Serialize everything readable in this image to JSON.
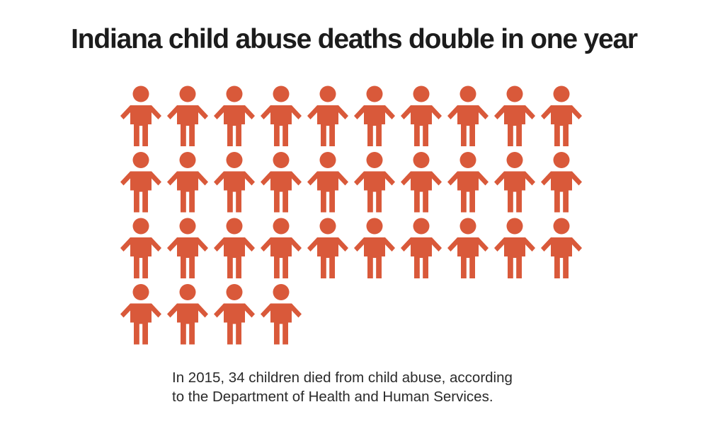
{
  "title": "Indiana child abuse deaths double in one year",
  "caption": {
    "line1": "In 2015, 34 children died from child abuse, according",
    "line2": "to the Department of Health and Human Services."
  },
  "colors": {
    "icon": "#d9593a",
    "title": "#1c1c1c",
    "caption": "#2a2a2a",
    "background": "#ffffff"
  },
  "chart_data": {
    "type": "pictograph",
    "icon": "child-figure-icon",
    "year": 2015,
    "count": 34,
    "icons_per_row": 10,
    "rows": 4
  }
}
